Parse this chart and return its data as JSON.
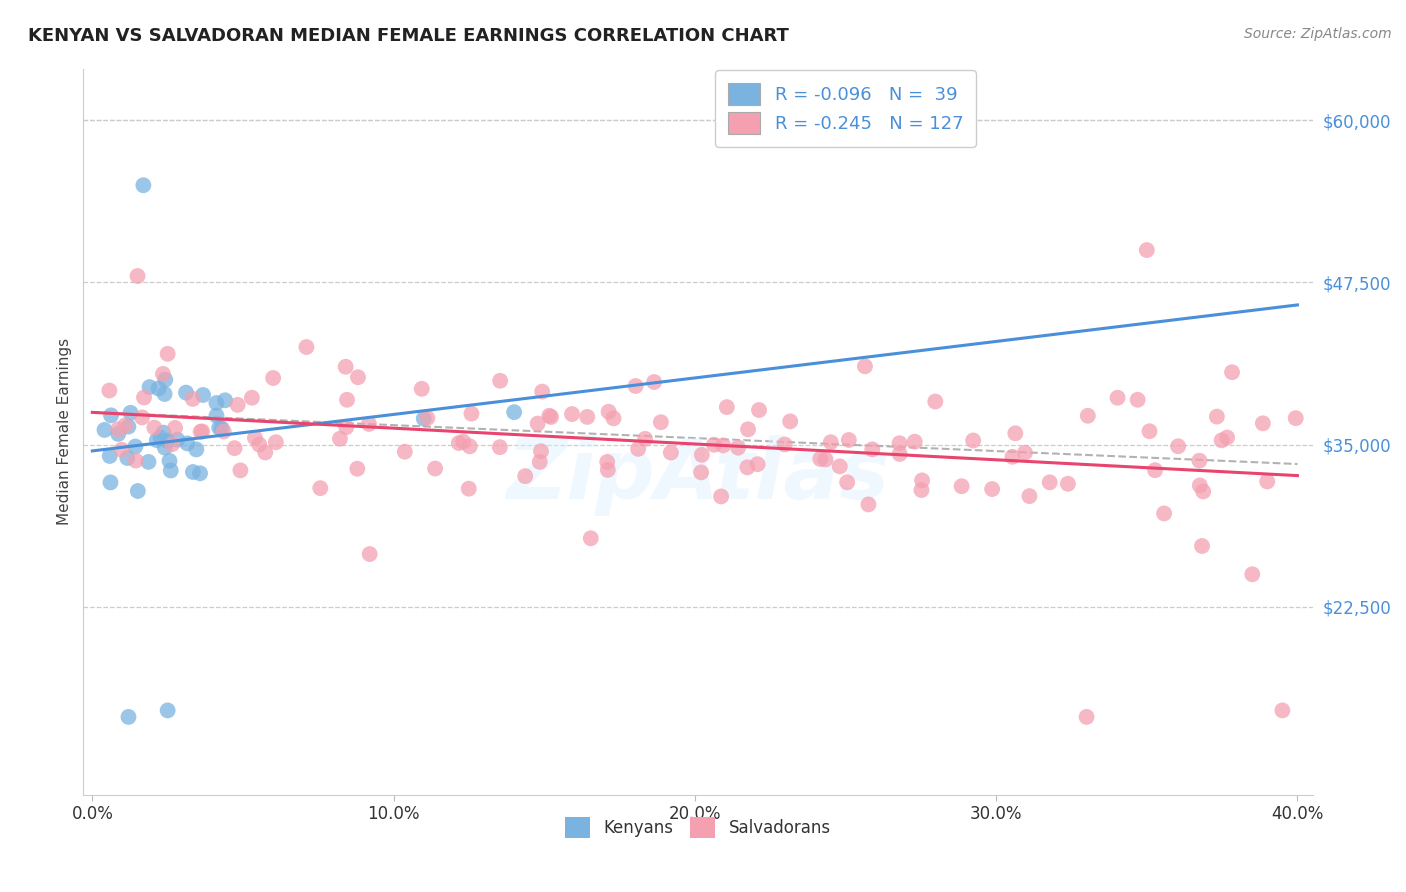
{
  "title": "KENYAN VS SALVADORAN MEDIAN FEMALE EARNINGS CORRELATION CHART",
  "source": "Source: ZipAtlas.com",
  "ylabel": "Median Female Earnings",
  "xmin": 0.0,
  "xmax": 40.0,
  "ymin": 8000,
  "ymax": 64000,
  "kenyan_color": "#7ab3e0",
  "salvadoran_color": "#f4a0b0",
  "kenyan_line_color": "#4a90d9",
  "salvadoran_line_color": "#e8446e",
  "R_kenyan": -0.096,
  "N_kenyan": 39,
  "R_salvadoran": -0.245,
  "N_salvadoran": 127,
  "background_color": "#ffffff",
  "grid_color": "#cccccc",
  "watermark": "ZipAtlas",
  "dashed_line_color": "#aaaaaa",
  "title_color": "#222222",
  "source_color": "#888888",
  "ylabel_color": "#444444",
  "tick_color_y": "#4a90d9",
  "tick_color_x": "#333333",
  "legend_text_color": "#4a90d9",
  "ytick_values": [
    22500,
    35000,
    47500,
    60000
  ],
  "ytick_labels": [
    "$22,500",
    "$35,000",
    "$47,500",
    "$60,000"
  ],
  "xtick_values": [
    0,
    10,
    20,
    30,
    40
  ],
  "xtick_labels": [
    "0.0%",
    "10.0%",
    "20.0%",
    "30.0%",
    "40.0%"
  ]
}
